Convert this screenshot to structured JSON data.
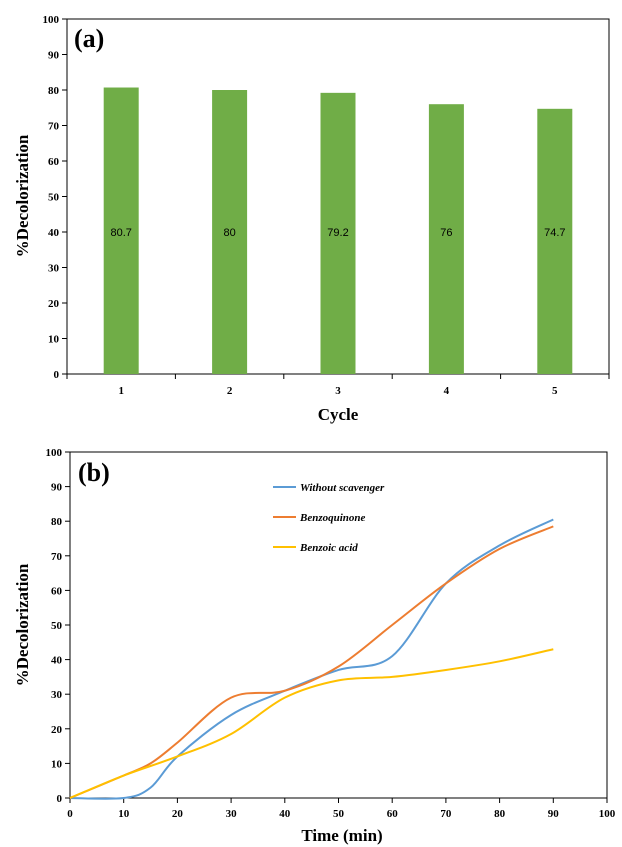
{
  "chart_data": [
    {
      "type": "bar",
      "panel_label": "(a)",
      "categories": [
        "1",
        "2",
        "3",
        "4",
        "5"
      ],
      "values": [
        80.7,
        80,
        79.2,
        76,
        74.7
      ],
      "data_labels": [
        "80.7",
        "80",
        "79.2",
        "76",
        "74.7"
      ],
      "xlabel": "Cycle",
      "ylabel": "%Decolorization",
      "ylim": [
        0,
        100
      ],
      "yticks": [
        0,
        10,
        20,
        30,
        40,
        50,
        60,
        70,
        80,
        90,
        100
      ],
      "bar_color": "#70ad47",
      "grid": false
    },
    {
      "type": "line",
      "panel_label": "(b)",
      "xlabel": "Time (min)",
      "ylabel": "%Decolorization",
      "xlim": [
        0,
        100
      ],
      "ylim": [
        0,
        100
      ],
      "xticks": [
        0,
        10,
        20,
        30,
        40,
        50,
        60,
        70,
        80,
        90,
        100
      ],
      "yticks": [
        0,
        10,
        20,
        30,
        40,
        50,
        60,
        70,
        80,
        90,
        100
      ],
      "legend_position": "top-center",
      "grid": false,
      "series": [
        {
          "name": "Without scavenger",
          "color": "#5b9bd5",
          "x": [
            0,
            10,
            15,
            20,
            30,
            40,
            50,
            60,
            70,
            80,
            90
          ],
          "y": [
            0,
            0,
            3,
            12,
            24,
            31,
            37,
            41,
            62,
            73,
            80.5
          ]
        },
        {
          "name": "Benzoquinone",
          "color": "#ed7d31",
          "x": [
            0,
            10,
            15,
            20,
            30,
            40,
            50,
            60,
            70,
            80,
            90
          ],
          "y": [
            0,
            6.5,
            10,
            16,
            29,
            31,
            38,
            50,
            62,
            72,
            78.5
          ]
        },
        {
          "name": "Benzoic acid",
          "color": "#ffc000",
          "x": [
            0,
            10,
            20,
            30,
            40,
            50,
            60,
            70,
            80,
            90
          ],
          "y": [
            0,
            6.5,
            12,
            18.5,
            29,
            34,
            35,
            37,
            39.5,
            43
          ]
        }
      ]
    }
  ]
}
